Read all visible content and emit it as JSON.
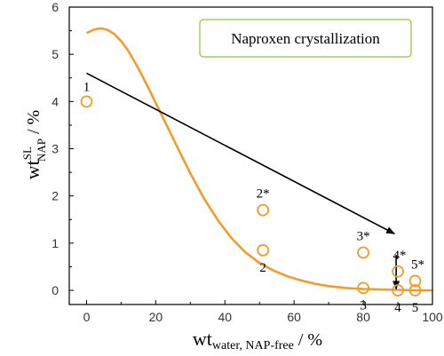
{
  "chart_data": {
    "type": "scatter",
    "title": "Naproxen crystallization",
    "xlabel": {
      "main": "wt",
      "sub": "water, NAP-free",
      "unit": " / %"
    },
    "ylabel": {
      "main": "wt",
      "sup": "SL",
      "sub": "NAP",
      "unit": " / %"
    },
    "xlim": [
      -5,
      100
    ],
    "ylim": [
      -0.3,
      6
    ],
    "xticks": [
      "0",
      "20",
      "40",
      "60",
      "80",
      "100"
    ],
    "yticks": [
      "0",
      "1",
      "2",
      "3",
      "4",
      "5",
      "6"
    ],
    "colors": {
      "marker": "#f39c2b",
      "curve": "#f39c2b",
      "arrow": "#000000",
      "legend_border": "#8dc63f"
    },
    "points": [
      {
        "x": 0,
        "y": 4.0,
        "label": "1"
      },
      {
        "x": 51,
        "y": 1.7,
        "label": "2*"
      },
      {
        "x": 51,
        "y": 0.85,
        "label": "2"
      },
      {
        "x": 80,
        "y": 0.8,
        "label": "3*"
      },
      {
        "x": 80,
        "y": 0.05,
        "label": "3"
      },
      {
        "x": 90,
        "y": 0.4,
        "label": "4*"
      },
      {
        "x": 90,
        "y": 0.0,
        "label": "4"
      },
      {
        "x": 95,
        "y": 0.2,
        "label": "5*"
      },
      {
        "x": 95,
        "y": 0.0,
        "label": "5"
      }
    ],
    "fit_curve": {
      "x": [
        0,
        2,
        4,
        6,
        8,
        10,
        12,
        15,
        18,
        21,
        24,
        27,
        30,
        34,
        38,
        42,
        46,
        50,
        54,
        58,
        62,
        66,
        70,
        75,
        80,
        85,
        90,
        95,
        100
      ],
      "y": [
        5.45,
        5.52,
        5.55,
        5.52,
        5.43,
        5.28,
        5.08,
        4.7,
        4.27,
        3.82,
        3.37,
        2.92,
        2.48,
        1.94,
        1.48,
        1.1,
        0.8,
        0.58,
        0.42,
        0.3,
        0.21,
        0.14,
        0.09,
        0.05,
        0.03,
        0.02,
        0.01,
        0.0,
        0.0
      ]
    },
    "arrows": [
      {
        "from": [
          0,
          4.6
        ],
        "to": [
          89,
          1.2
        ]
      },
      {
        "from": [
          89.5,
          0.75
        ],
        "to": [
          89.5,
          0.03
        ]
      }
    ],
    "grid": false,
    "legend_position": "top-right"
  }
}
